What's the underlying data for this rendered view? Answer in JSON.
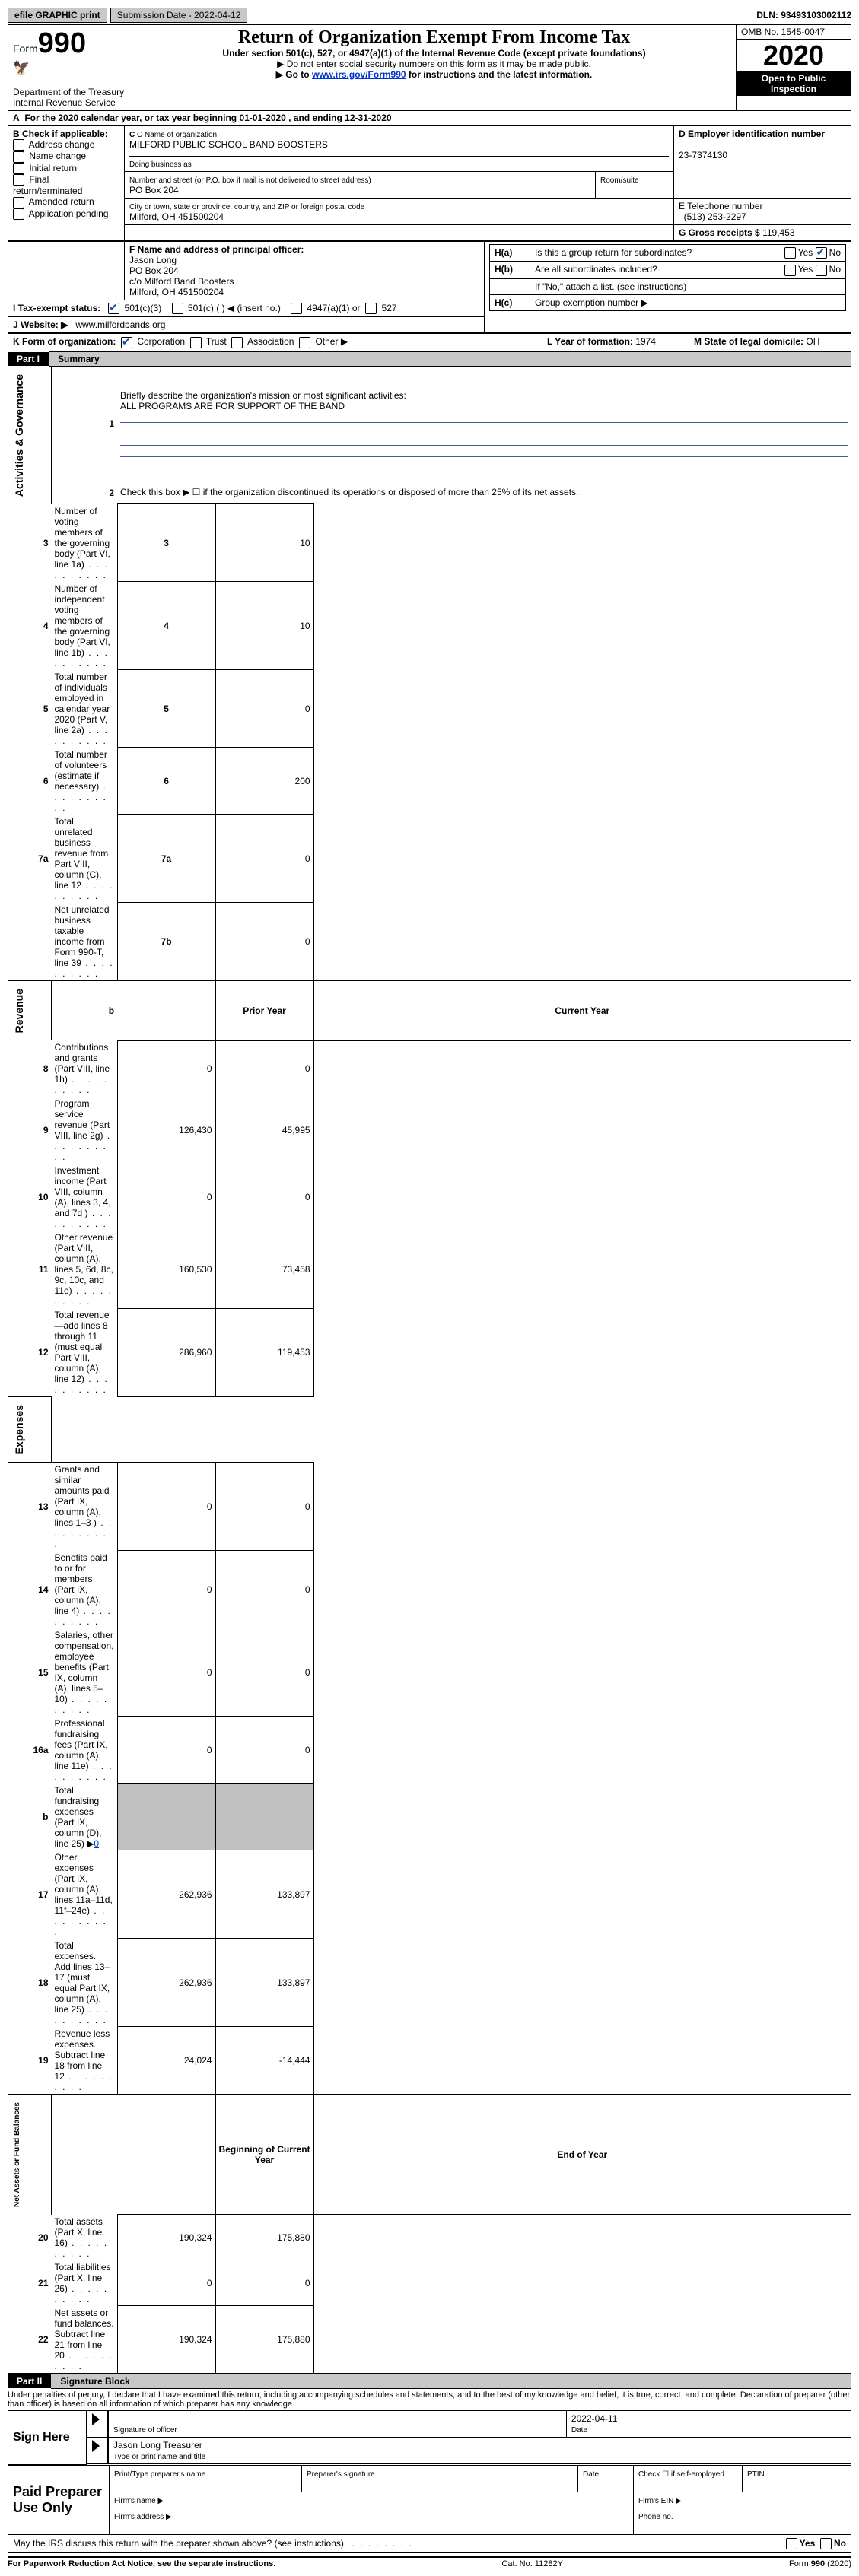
{
  "topbar": {
    "efile_label": "efile GRAPHIC print",
    "submission_label": "Submission Date - 2022-04-12",
    "dln_label": "DLN: 93493103002112"
  },
  "header": {
    "form_prefix": "Form",
    "form_number": "990",
    "dept": "Department of the Treasury",
    "irs": "Internal Revenue Service",
    "title": "Return of Organization Exempt From Income Tax",
    "subtitle": "Under section 501(c), 527, or 4947(a)(1) of the Internal Revenue Code (except private foundations)",
    "note1": "▶ Do not enter social security numbers on this form as it may be made public.",
    "note2_prefix": "▶ Go to ",
    "note2_link": "www.irs.gov/Form990",
    "note2_suffix": " for instructions and the latest information.",
    "omb": "OMB No. 1545-0047",
    "year": "2020",
    "open_public": "Open to Public Inspection"
  },
  "periodA": "For the 2020 calendar year, or tax year beginning 01-01-2020   , and ending 12-31-2020",
  "boxB": {
    "label": "B Check if applicable:",
    "items": [
      "Address change",
      "Name change",
      "Initial return",
      "Final return/terminated",
      "Amended return",
      "Application pending"
    ]
  },
  "boxC": {
    "name_label": "C Name of organization",
    "name": "MILFORD PUBLIC SCHOOL BAND BOOSTERS",
    "dba_label": "Doing business as",
    "addr_label": "Number and street (or P.O. box if mail is not delivered to street address)",
    "room_label": "Room/suite",
    "addr": "PO Box 204",
    "city_label": "City or town, state or province, country, and ZIP or foreign postal code",
    "city": "Milford, OH  451500204"
  },
  "boxD": {
    "label": "D Employer identification number",
    "value": "23-7374130"
  },
  "boxE": {
    "label": "E Telephone number",
    "value": "(513) 253-2297"
  },
  "boxG": {
    "label": "G Gross receipts $",
    "value": "119,453"
  },
  "boxF": {
    "label": "F  Name and address of principal officer:",
    "name": "Jason Long",
    "addr1": "PO Box 204",
    "addr2": "c/o Milford Band Boosters",
    "addr3": "Milford, OH  451500204"
  },
  "boxH": {
    "a_text": "Is this a group return for subordinates?",
    "a_label": "H(a)",
    "b_label": "H(b)",
    "b_text": "Are all subordinates included?",
    "note": "If \"No,\" attach a list. (see instructions)",
    "c_label": "H(c)",
    "c_text": "Group exemption number ▶",
    "yes": "Yes",
    "no": "No"
  },
  "lineI": {
    "label": "I   Tax-exempt status:",
    "opts": [
      "501(c)(3)",
      "501(c) (  ) ◀ (insert no.)",
      "4947(a)(1) or",
      "527"
    ]
  },
  "lineJ": {
    "label": "J   Website: ▶",
    "value": "www.milfordbands.org"
  },
  "lineK": {
    "label": "K Form of organization:",
    "opts": [
      "Corporation",
      "Trust",
      "Association",
      "Other ▶"
    ]
  },
  "lineL": {
    "label": "L Year of formation:",
    "value": "1974"
  },
  "lineM": {
    "label": "M State of legal domicile:",
    "value": "OH"
  },
  "part1": {
    "label": "Part I",
    "title": "Summary"
  },
  "summary": {
    "q1_label": "1",
    "q1_text": "Briefly describe the organization's mission or most significant activities:",
    "q1_value": "ALL PROGRAMS ARE FOR SUPPORT OF THE BAND",
    "q2_label": "2",
    "q2_text": "Check this box ▶ ☐  if the organization discontinued its operations or disposed of more than 25% of its net assets."
  },
  "gov_rows": [
    {
      "n": "3",
      "t": "Number of voting members of the governing body (Part VI, line 1a)",
      "ln": "3",
      "v": "10"
    },
    {
      "n": "4",
      "t": "Number of independent voting members of the governing body (Part VI, line 1b)",
      "ln": "4",
      "v": "10"
    },
    {
      "n": "5",
      "t": "Total number of individuals employed in calendar year 2020 (Part V, line 2a)",
      "ln": "5",
      "v": "0"
    },
    {
      "n": "6",
      "t": "Total number of volunteers (estimate if necessary)",
      "ln": "6",
      "v": "200"
    },
    {
      "n": "7a",
      "t": "Total unrelated business revenue from Part VIII, column (C), line 12",
      "ln": "7a",
      "v": "0"
    },
    {
      "n": "",
      "t": "Net unrelated business taxable income from Form 990-T, line 39",
      "ln": "7b",
      "v": "0"
    }
  ],
  "col_headers": {
    "prior": "Prior Year",
    "current": "Current Year",
    "boy": "Beginning of Current Year",
    "eoy": "End of Year"
  },
  "b_cell": "b",
  "revenue_rows": [
    {
      "n": "8",
      "t": "Contributions and grants (Part VIII, line 1h)",
      "p": "0",
      "c": "0"
    },
    {
      "n": "9",
      "t": "Program service revenue (Part VIII, line 2g)",
      "p": "126,430",
      "c": "45,995"
    },
    {
      "n": "10",
      "t": "Investment income (Part VIII, column (A), lines 3, 4, and 7d )",
      "p": "0",
      "c": "0"
    },
    {
      "n": "11",
      "t": "Other revenue (Part VIII, column (A), lines 5, 6d, 8c, 9c, 10c, and 11e)",
      "p": "160,530",
      "c": "73,458"
    },
    {
      "n": "12",
      "t": "Total revenue—add lines 8 through 11 (must equal Part VIII, column (A), line 12)",
      "p": "286,960",
      "c": "119,453"
    }
  ],
  "expense_rows": [
    {
      "n": "13",
      "t": "Grants and similar amounts paid (Part IX, column (A), lines 1–3 )",
      "p": "0",
      "c": "0"
    },
    {
      "n": "14",
      "t": "Benefits paid to or for members (Part IX, column (A), line 4)",
      "p": "0",
      "c": "0"
    },
    {
      "n": "15",
      "t": "Salaries, other compensation, employee benefits (Part IX, column (A), lines 5–10)",
      "p": "0",
      "c": "0"
    },
    {
      "n": "16a",
      "t": "Professional fundraising fees (Part IX, column (A), line 11e)",
      "p": "0",
      "c": "0"
    },
    {
      "n": "b",
      "t": "Total fundraising expenses (Part IX, column (D), line 25) ▶",
      "p": "",
      "c": "",
      "shade": true,
      "link": "0"
    },
    {
      "n": "17",
      "t": "Other expenses (Part IX, column (A), lines 11a–11d, 11f–24e)",
      "p": "262,936",
      "c": "133,897"
    },
    {
      "n": "18",
      "t": "Total expenses. Add lines 13–17 (must equal Part IX, column (A), line 25)",
      "p": "262,936",
      "c": "133,897"
    },
    {
      "n": "19",
      "t": "Revenue less expenses. Subtract line 18 from line 12",
      "p": "24,024",
      "c": "-14,444"
    }
  ],
  "net_rows": [
    {
      "n": "20",
      "t": "Total assets (Part X, line 16)",
      "p": "190,324",
      "c": "175,880"
    },
    {
      "n": "21",
      "t": "Total liabilities (Part X, line 26)",
      "p": "0",
      "c": "0"
    },
    {
      "n": "22",
      "t": "Net assets or fund balances. Subtract line 21 from line 20",
      "p": "190,324",
      "c": "175,880"
    }
  ],
  "section_labels": {
    "gov": "Activities & Governance",
    "rev": "Revenue",
    "exp": "Expenses",
    "net": "Net Assets or Fund Balances"
  },
  "part2": {
    "label": "Part II",
    "title": "Signature Block"
  },
  "sig": {
    "declaration": "Under penalties of perjury, I declare that I have examined this return, including accompanying schedules and statements, and to the best of my knowledge and belief, it is true, correct, and complete. Declaration of preparer (other than officer) is based on all information of which preparer has any knowledge.",
    "sign_here": "Sign Here",
    "sig_officer": "Signature of officer",
    "date_label": "Date",
    "date_value": "2022-04-11",
    "name_title": "Jason Long Treasurer",
    "type_name": "Type or print name and title",
    "paid": "Paid Preparer Use Only",
    "print_name": "Print/Type preparer's name",
    "prep_sig": "Preparer's signature",
    "check_self": "Check ☐ if self-employed",
    "ptin": "PTIN",
    "firm_name": "Firm's name  ▶",
    "firm_ein": "Firm's EIN ▶",
    "firm_addr": "Firm's address ▶",
    "phone": "Phone no."
  },
  "bottom": {
    "discuss": "May the IRS discuss this return with the preparer shown above? (see instructions)",
    "yes": "Yes",
    "no": "No",
    "paperwork": "For Paperwork Reduction Act Notice, see the separate instructions.",
    "cat": "Cat. No. 11282Y",
    "form": "Form 990 (2020)"
  }
}
